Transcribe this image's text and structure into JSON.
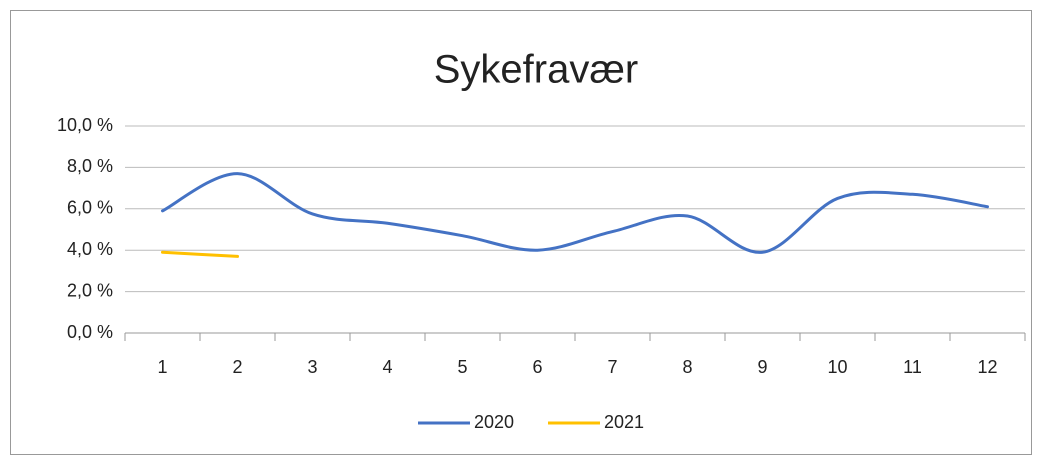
{
  "chart_data": {
    "type": "line",
    "title": "Sykefravær",
    "categories": [
      "1",
      "2",
      "3",
      "4",
      "5",
      "6",
      "7",
      "8",
      "9",
      "10",
      "11",
      "12"
    ],
    "series": [
      {
        "name": "2020",
        "color": "#4472c4",
        "values": [
          5.9,
          7.7,
          5.75,
          5.3,
          4.7,
          4.0,
          4.9,
          5.65,
          3.9,
          6.5,
          6.7,
          6.1
        ]
      },
      {
        "name": "2021",
        "color": "#ffc000",
        "values": [
          3.9,
          3.7,
          null,
          null,
          null,
          null,
          null,
          null,
          null,
          null,
          null,
          null
        ]
      }
    ],
    "ylim": [
      0,
      10
    ],
    "yticks": [
      {
        "value": 0,
        "label": "0,0 %"
      },
      {
        "value": 2,
        "label": "2,0 %"
      },
      {
        "value": 4,
        "label": "4,0 %"
      },
      {
        "value": 6,
        "label": "6,0 %"
      },
      {
        "value": 8,
        "label": "8,0 %"
      },
      {
        "value": 10,
        "label": "10,0 %"
      }
    ],
    "grid": true,
    "smooth": true,
    "legend": "bottom"
  }
}
